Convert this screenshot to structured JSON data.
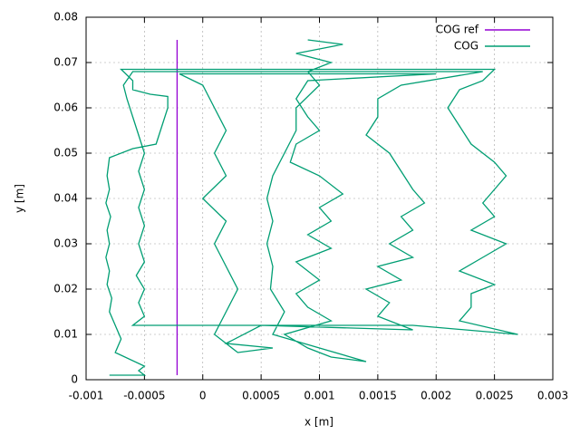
{
  "chart_data": {
    "type": "line",
    "xlabel": "x [m]",
    "ylabel": "y [m]",
    "xlim": [
      -0.001,
      0.003
    ],
    "xticks": [
      -0.001,
      -0.0005,
      0,
      0.0005,
      0.001,
      0.0015,
      0.002,
      0.0025,
      0.003
    ],
    "ylim": [
      0,
      0.08
    ],
    "yticks": [
      0,
      0.01,
      0.02,
      0.03,
      0.04,
      0.05,
      0.06,
      0.07,
      0.08
    ],
    "grid": true,
    "legend": "top-right",
    "series": [
      {
        "name": "COG ref",
        "color": "#9400d3",
        "x": [
          -0.00022,
          -0.00022
        ],
        "y": [
          0.001,
          0.075
        ]
      },
      {
        "name": "COG",
        "color": "#009e73",
        "x": [
          -0.0008,
          -0.0005,
          -0.00055,
          -0.0005,
          -0.00075,
          -0.0007,
          -0.00075,
          -0.0008,
          -0.00078,
          -0.00082,
          -0.0008,
          -0.00083,
          -0.0008,
          -0.00082,
          -0.00079,
          -0.00083,
          -0.0008,
          -0.00082,
          -0.0008,
          -0.0006,
          -0.0004,
          -0.00035,
          -0.0003,
          -0.0003,
          -0.00045,
          -0.0006,
          -0.0006,
          -0.0007,
          0.0025,
          0.0024,
          0.0022,
          0.0021,
          0.0022,
          0.0023,
          0.0025,
          0.0026,
          0.0025,
          0.0024,
          0.0025,
          0.0023,
          0.0026,
          0.0024,
          0.0022,
          0.0025,
          0.0023,
          0.0023,
          0.0022,
          0.0027,
          0.0018,
          -0.0006,
          -0.0005,
          -0.00055,
          -0.0005,
          -0.00057,
          -0.0005,
          -0.00055,
          -0.0005,
          -0.00055,
          -0.0005,
          -0.00055,
          -0.0005,
          -0.00055,
          -0.0006,
          -0.00065,
          -0.00068,
          -0.0006,
          0.0024,
          0.0017,
          0.0015,
          0.0015,
          0.0014,
          0.0016,
          0.0017,
          0.0018,
          0.0019,
          0.0017,
          0.0018,
          0.0016,
          0.0018,
          0.0015,
          0.0017,
          0.0014,
          0.0016,
          0.0015,
          0.0018,
          0.0005,
          0.0002,
          0.0006,
          0.0003,
          0.0001,
          0.0002,
          0.0003,
          0.0002,
          0.0001,
          0.0002,
          0,
          0.0002,
          0.0001,
          0.0002,
          0.0001,
          0,
          -0.0002,
          0.002,
          0.0009,
          0.0008,
          0.0009,
          0.001,
          0.0008,
          0.00075,
          0.001,
          0.0012,
          0.001,
          0.0011,
          0.0009,
          0.0011,
          0.0008,
          0.001,
          0.0008,
          0.0009,
          0.0011,
          0.0007,
          0.0009,
          0.0011,
          0.0014,
          0.0006,
          0.0007,
          0.00058,
          0.0006,
          0.00055,
          0.0006,
          0.00055,
          0.0006,
          0.0007,
          0.0008,
          0.0008,
          0.001,
          0.0009,
          0.0011,
          0.0008,
          0.0012,
          0.0009
        ],
        "y": [
          0.001,
          0.001,
          0.002,
          0.003,
          0.006,
          0.009,
          0.012,
          0.015,
          0.018,
          0.021,
          0.024,
          0.027,
          0.03,
          0.033,
          0.036,
          0.039,
          0.042,
          0.045,
          0.049,
          0.051,
          0.052,
          0.056,
          0.06,
          0.0625,
          0.063,
          0.064,
          0.066,
          0.0685,
          0.0685,
          0.066,
          0.064,
          0.06,
          0.056,
          0.052,
          0.048,
          0.045,
          0.042,
          0.039,
          0.036,
          0.033,
          0.03,
          0.027,
          0.024,
          0.021,
          0.019,
          0.016,
          0.013,
          0.01,
          0.012,
          0.012,
          0.014,
          0.017,
          0.02,
          0.023,
          0.026,
          0.03,
          0.034,
          0.038,
          0.042,
          0.046,
          0.05,
          0.054,
          0.058,
          0.062,
          0.065,
          0.068,
          0.068,
          0.065,
          0.062,
          0.058,
          0.054,
          0.05,
          0.046,
          0.042,
          0.039,
          0.036,
          0.033,
          0.03,
          0.027,
          0.025,
          0.022,
          0.02,
          0.017,
          0.014,
          0.011,
          0.012,
          0.008,
          0.007,
          0.006,
          0.01,
          0.015,
          0.02,
          0.025,
          0.03,
          0.035,
          0.04,
          0.045,
          0.05,
          0.055,
          0.06,
          0.065,
          0.0675,
          0.0675,
          0.066,
          0.062,
          0.058,
          0.055,
          0.052,
          0.048,
          0.045,
          0.041,
          0.038,
          0.035,
          0.032,
          0.029,
          0.026,
          0.022,
          0.019,
          0.016,
          0.013,
          0.01,
          0.007,
          0.005,
          0.004,
          0.01,
          0.015,
          0.02,
          0.025,
          0.03,
          0.035,
          0.04,
          0.045,
          0.05,
          0.055,
          0.06,
          0.065,
          0.068,
          0.07,
          0.072,
          0.074,
          0.075
        ]
      }
    ]
  }
}
